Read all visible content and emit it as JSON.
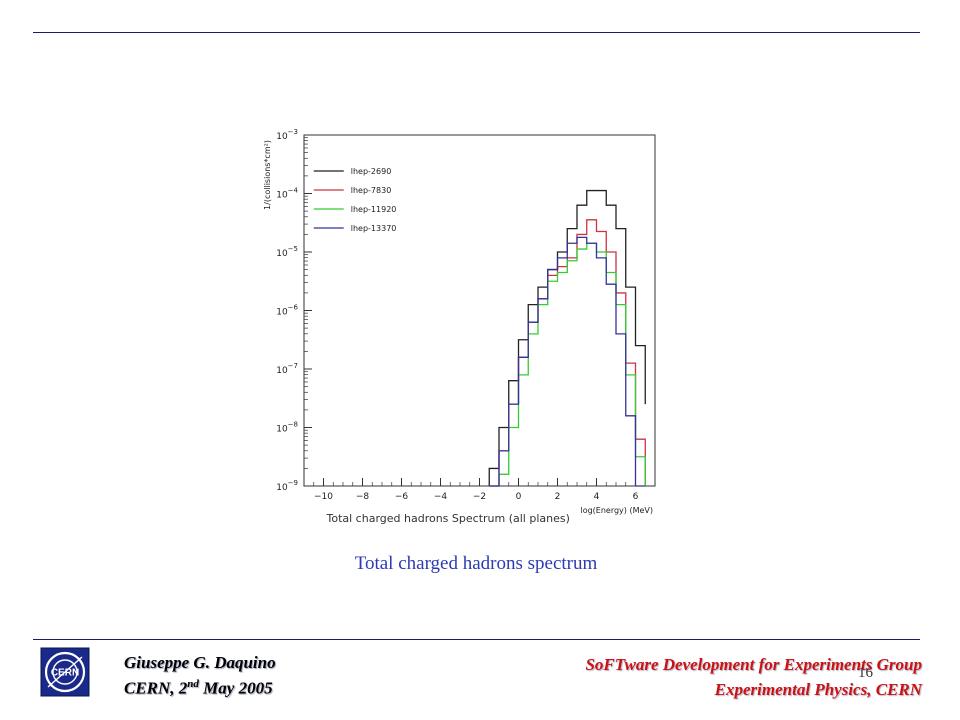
{
  "footer": {
    "author": "Giuseppe G. Daquino",
    "venue_prefix": "CERN, 2",
    "venue_sup": "nd",
    "venue_suffix": " May 2005",
    "group": "SoFTware Development for Experiments Group",
    "dept": "Experimental Physics, CERN",
    "page": "16",
    "logo_text": "CERN"
  },
  "caption": "Total charged hadrons spectrum",
  "colors": {
    "rule": "#1a1a6e",
    "caption": "#2b3bb3",
    "footer_right": "#cc1111"
  },
  "chart_data": {
    "type": "line",
    "step": true,
    "title": "Total charged hadrons Spectrum (all planes)",
    "xlabel": "log(Energy) (MeV)",
    "ylabel": "1/(collisions*cm²)",
    "xlim": [
      -11,
      7
    ],
    "ylim_exp": [
      -9,
      -3
    ],
    "yscale": "log",
    "xticks": [
      -10,
      -8,
      -6,
      -4,
      -2,
      0,
      2,
      4,
      6
    ],
    "yticks_exp": [
      -9,
      -8,
      -7,
      -6,
      -5,
      -4,
      -3
    ],
    "ytick_base": "10",
    "legend": "top-left",
    "bin_edges": [
      -1.5,
      -1,
      -0.5,
      0,
      0.5,
      1,
      1.5,
      2,
      2.5,
      3,
      3.5,
      4,
      4.5,
      5,
      5.5,
      6,
      6.5
    ],
    "series": [
      {
        "name": "lhep-2690",
        "color": "#222222",
        "log_values": [
          -8.7,
          -8.0,
          -7.2,
          -6.5,
          -5.9,
          -5.6,
          -5.3,
          -5.0,
          -4.6,
          -4.2,
          -3.95,
          -3.95,
          -4.2,
          -4.6,
          -5.6,
          -6.6,
          -7.6
        ]
      },
      {
        "name": "lhep-7830",
        "color": "#cc3344",
        "log_values": [
          -9.0,
          -8.4,
          -7.6,
          -6.8,
          -6.2,
          -5.8,
          -5.4,
          -5.25,
          -5.1,
          -4.7,
          -4.45,
          -4.65,
          -5.0,
          -5.7,
          -6.9,
          -8.2,
          -9.0
        ]
      },
      {
        "name": "lhep-11920",
        "color": "#33cc33",
        "log_values": [
          -9.0,
          -8.8,
          -8.0,
          -7.1,
          -6.4,
          -5.9,
          -5.5,
          -5.35,
          -5.15,
          -4.95,
          -4.85,
          -5.0,
          -5.35,
          -5.9,
          -7.1,
          -8.5,
          -9.0
        ]
      },
      {
        "name": "lhep-13370",
        "color": "#333399",
        "log_values": [
          -9.0,
          -8.4,
          -7.6,
          -6.8,
          -6.2,
          -5.8,
          -5.3,
          -5.1,
          -4.85,
          -4.75,
          -4.85,
          -5.1,
          -5.55,
          -6.4,
          -7.8,
          -9.0,
          -9.0
        ]
      }
    ]
  }
}
